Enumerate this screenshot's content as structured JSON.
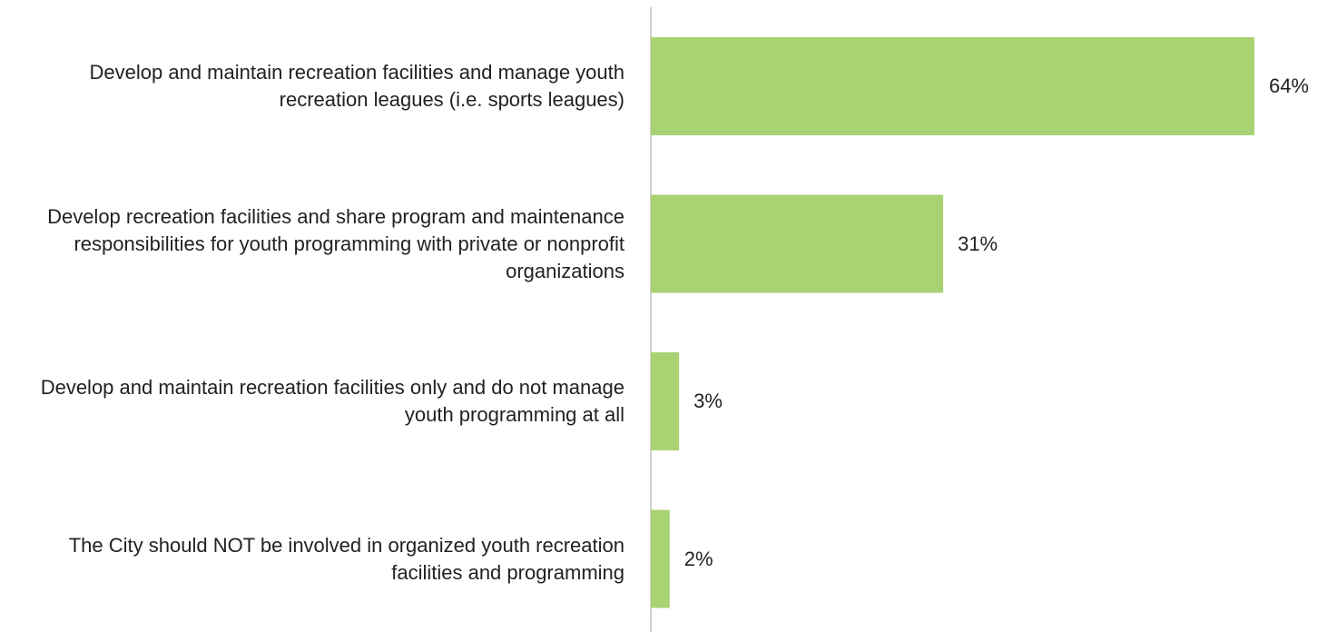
{
  "chart_data": {
    "type": "bar",
    "orientation": "horizontal",
    "categories": [
      "Develop and maintain recreation facilities and manage youth recreation leagues (i.e. sports leagues)",
      "Develop recreation facilities and share program and maintenance responsibilities for youth programming with private or nonprofit organizations",
      "Develop and maintain recreation facilities only and do not manage youth programming at all",
      "The City should NOT be involved in organized youth recreation facilities and programming"
    ],
    "values": [
      64,
      31,
      3,
      2
    ],
    "value_labels": [
      "64%",
      "31%",
      "3%",
      "2%"
    ],
    "color": "#a9d273"
  }
}
